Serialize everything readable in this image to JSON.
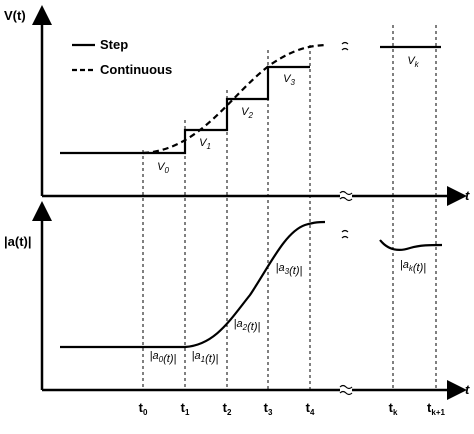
{
  "top_axis": {
    "label": "V(t)",
    "t_label": "t"
  },
  "legend": {
    "step": "Step",
    "continuous": "Continuous"
  },
  "v_labels": [
    {
      "main": "V",
      "sub": "0"
    },
    {
      "main": "V",
      "sub": "1"
    },
    {
      "main": "V",
      "sub": "2"
    },
    {
      "main": "V",
      "sub": "3"
    },
    {
      "main": "V",
      "sub": "k"
    }
  ],
  "bottom_axis": {
    "label": "|a(t)|",
    "t_label": "t"
  },
  "a_labels": [
    {
      "pre": "|a",
      "sub": "0",
      "post": "(t)|"
    },
    {
      "pre": "|a",
      "sub": "1",
      "post": "(t)|"
    },
    {
      "pre": "|a",
      "sub": "2",
      "post": "(t)|"
    },
    {
      "pre": "|a",
      "sub": "3",
      "post": "(t)|"
    },
    {
      "pre": "|a",
      "sub": "k",
      "post": "(t)|"
    }
  ],
  "time_labels": [
    {
      "main": "t",
      "sub": "0"
    },
    {
      "main": "t",
      "sub": "1"
    },
    {
      "main": "t",
      "sub": "2"
    },
    {
      "main": "t",
      "sub": "3"
    },
    {
      "main": "t",
      "sub": "4"
    },
    {
      "main": "t",
      "sub": "k"
    },
    {
      "main": "t",
      "sub": "k+1"
    }
  ]
}
